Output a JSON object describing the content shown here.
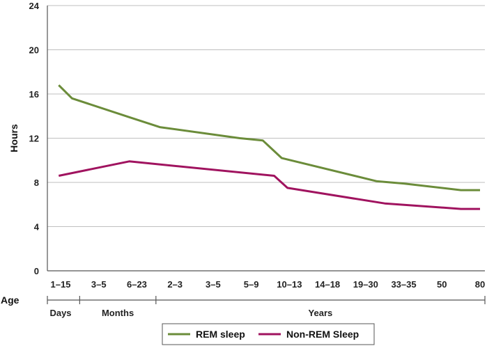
{
  "chart_data": {
    "type": "line",
    "ylabel": "Hours",
    "xlabel": "Age",
    "ylim": [
      0,
      24
    ],
    "yticks": [
      0,
      4,
      8,
      12,
      16,
      20,
      24
    ],
    "grid": true,
    "legend_position": "bottom",
    "categories": [
      "1–15",
      "3–5",
      "6–23",
      "2–3",
      "3–5",
      "5–9",
      "10–13",
      "14–18",
      "19–30",
      "33–35",
      "50",
      "80"
    ],
    "x_groups": [
      {
        "label": "Days",
        "from": 0,
        "to": 0
      },
      {
        "label": "Months",
        "from": 1,
        "to": 2
      },
      {
        "label": "Years",
        "from": 3,
        "to": 11
      }
    ],
    "series": [
      {
        "name": "REM sleep",
        "color": "#6b8c3a",
        "points": [
          [
            -0.05,
            16.8
          ],
          [
            0.3,
            15.6
          ],
          [
            1.8,
            13.9
          ],
          [
            2.6,
            13.0
          ],
          [
            4.7,
            12.0
          ],
          [
            5.3,
            11.8
          ],
          [
            5.8,
            10.2
          ],
          [
            8.3,
            8.1
          ],
          [
            9.0,
            7.9
          ],
          [
            10.5,
            7.3
          ],
          [
            11.0,
            7.3
          ]
        ]
      },
      {
        "name": "Non-REM Sleep",
        "color": "#a0135f",
        "points": [
          [
            -0.05,
            8.6
          ],
          [
            1.8,
            9.9
          ],
          [
            5.6,
            8.6
          ],
          [
            5.95,
            7.5
          ],
          [
            8.5,
            6.1
          ],
          [
            10.5,
            5.6
          ],
          [
            11.0,
            5.6
          ]
        ]
      }
    ]
  }
}
